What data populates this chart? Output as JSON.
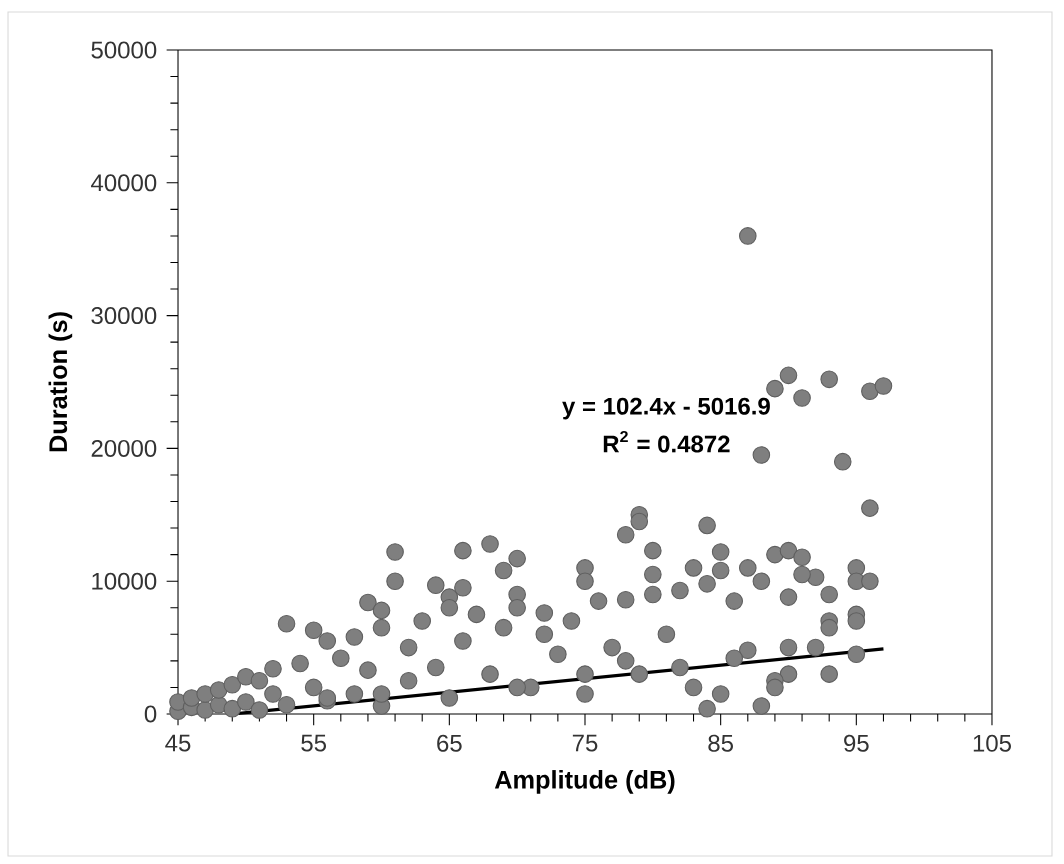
{
  "chart_data": {
    "type": "scatter",
    "xlabel": "Amplitude (dB)",
    "ylabel": "Duration (s)",
    "xlim": [
      45,
      105
    ],
    "ylim": [
      0,
      50000
    ],
    "xticks": [
      45,
      55,
      65,
      75,
      85,
      95,
      105
    ],
    "yticks": [
      0,
      10000,
      20000,
      30000,
      40000,
      50000
    ],
    "annotations": [
      "y = 102.4x - 5016.9",
      "R$^{2}$ = 0.4872"
    ],
    "series": [
      {
        "marker": "circle",
        "color": "#7f7f7f",
        "x": [
          87,
          89,
          90,
          91,
          93,
          96,
          97,
          88,
          94,
          96,
          79,
          78,
          79,
          84,
          61,
          66,
          68,
          70,
          69,
          80,
          85,
          89,
          90,
          91,
          95,
          95,
          96,
          95,
          93,
          93,
          95,
          53,
          59,
          60,
          61,
          64,
          66,
          70,
          75,
          75,
          80,
          83,
          85,
          87,
          92,
          90,
          89,
          45,
          45,
          46,
          46,
          47,
          47,
          48,
          48,
          49,
          49,
          50,
          50,
          51,
          51,
          52,
          52,
          53,
          54,
          55,
          55,
          56,
          56,
          57,
          58,
          58,
          59,
          60,
          60,
          62,
          62,
          63,
          64,
          65,
          65,
          66,
          67,
          68,
          69,
          70,
          71,
          72,
          73,
          74,
          75,
          76,
          77,
          78,
          79,
          80,
          81,
          82,
          83,
          84,
          85,
          86,
          87,
          88,
          89,
          90,
          91,
          92,
          93,
          65,
          72,
          78,
          84,
          88,
          56,
          60,
          70,
          75,
          82,
          86,
          90,
          93,
          95
        ],
        "values": [
          36000,
          24500,
          25500,
          23800,
          25200,
          24300,
          24700,
          19500,
          19000,
          15500,
          15000,
          13500,
          14500,
          14200,
          12200,
          12300,
          12800,
          11700,
          10800,
          12300,
          12200,
          12000,
          12300,
          11800,
          11000,
          10000,
          10000,
          7500,
          7000,
          3000,
          4500,
          6800,
          8400,
          7800,
          10000,
          9700,
          9500,
          9000,
          11000,
          10000,
          10500,
          11000,
          10800,
          11000,
          10300,
          3000,
          2500,
          200,
          900,
          500,
          1200,
          300,
          1500,
          700,
          1800,
          400,
          2200,
          900,
          2800,
          300,
          2500,
          1500,
          3400,
          700,
          3800,
          2000,
          6300,
          1000,
          5500,
          4200,
          1500,
          5800,
          3300,
          6500,
          600,
          5000,
          2500,
          7000,
          3500,
          8800,
          1200,
          5500,
          7500,
          3000,
          6500,
          8000,
          2000,
          7600,
          4500,
          7000,
          1500,
          8500,
          5000,
          8600,
          3000,
          9000,
          6000,
          9300,
          2000,
          9800,
          1500,
          8500,
          4800,
          10000,
          2000,
          8800,
          10500,
          5000,
          9000,
          8000,
          6000,
          4000,
          400,
          600,
          1200,
          1500,
          2000,
          3000,
          3500,
          4200,
          5000,
          6500,
          7000
        ]
      },
      {
        "type": "line",
        "marker": "none",
        "color": "#000000",
        "x": [
          49,
          97
        ],
        "values": [
          0,
          4900
        ]
      }
    ]
  }
}
